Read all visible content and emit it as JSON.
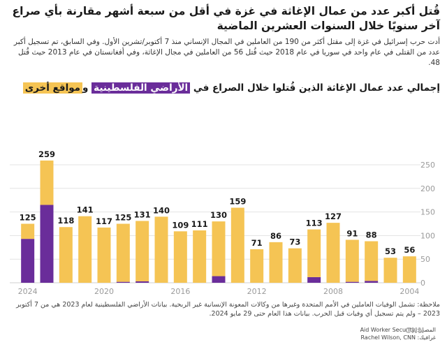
{
  "headline": "قُتل أكبر عدد من عمال الإغاثة في غزة في أقل من سبعة أشهر مقارنة بأي صراع آخر سنويًا خلال السنوات العشرين الماضية",
  "description": "أدت حرب إسرائيل في غزة إلى مقتل أكثر من 190 من العاملين في المجال الإنساني منذ 7 أكتوبر/تشرين الأول. وفي السابق، تم تسجيل أكبر عدد من القتلى في عام واحد في سوريا في عام 2018 حيث قُتل 56 من العاملين في مجال الإغاثة، وفي أفغانستان في عام 2013 حيث قُتل 48.",
  "chart_title": {
    "prefix": "إجمالي عدد عمال الإغاثة الذين قُتلوا خلال الصراع في ",
    "highlight_palestinian": "الأراضي الفلسطينية",
    "connector": " و",
    "highlight_other": "مواقع أخرى"
  },
  "colors": {
    "palestinian": "#6a2d9a",
    "other": "#f5c454",
    "grid": "#e3e3e3",
    "axis_text": "#9a9a9a"
  },
  "note": "ملاحظة: تشمل الوفيات العاملين في الأمم المتحدة وغيرها من وكالات المعونة الإنسانية غير الربحية. بيانات الأراضي الفلسطينية لعام 2023 هي من 7 أكتوبر 2023 – ولم يتم تسجيل أي وفيات قبل الحرب. بيانات هذا العام حتى 29 مايو 2024.",
  "source": "المصدر: Aid Worker Security",
  "graphic": "غرافيك: Rachel Wilson, CNN",
  "logo": "CNN",
  "chart_data": {
    "type": "bar",
    "stacked": true,
    "x": [
      2024,
      2023,
      2022,
      2021,
      2020,
      2019,
      2018,
      2017,
      2016,
      2015,
      2014,
      2013,
      2012,
      2011,
      2010,
      2009,
      2008,
      2007,
      2006,
      2005,
      2004
    ],
    "totals": [
      125,
      259,
      118,
      141,
      117,
      125,
      131,
      140,
      109,
      111,
      130,
      159,
      71,
      86,
      73,
      113,
      127,
      91,
      88,
      53,
      56
    ],
    "series": [
      {
        "name": "الأراضي الفلسطينية",
        "values": [
          93,
          165,
          0,
          0,
          0,
          2,
          3,
          0,
          0,
          0,
          14,
          0,
          0,
          0,
          0,
          12,
          0,
          2,
          4,
          0,
          0
        ]
      },
      {
        "name": "مواقع أخرى",
        "values": [
          32,
          94,
          118,
          141,
          117,
          123,
          128,
          140,
          109,
          111,
          116,
          159,
          71,
          86,
          73,
          101,
          127,
          89,
          84,
          53,
          56
        ]
      }
    ],
    "y_ticks": [
      0,
      50,
      100,
      150,
      200,
      250
    ],
    "x_ticks": [
      2024,
      2020,
      2016,
      2012,
      2008,
      2004
    ],
    "ylim": [
      0,
      270
    ],
    "grid": true,
    "y_axis_side": "right"
  }
}
